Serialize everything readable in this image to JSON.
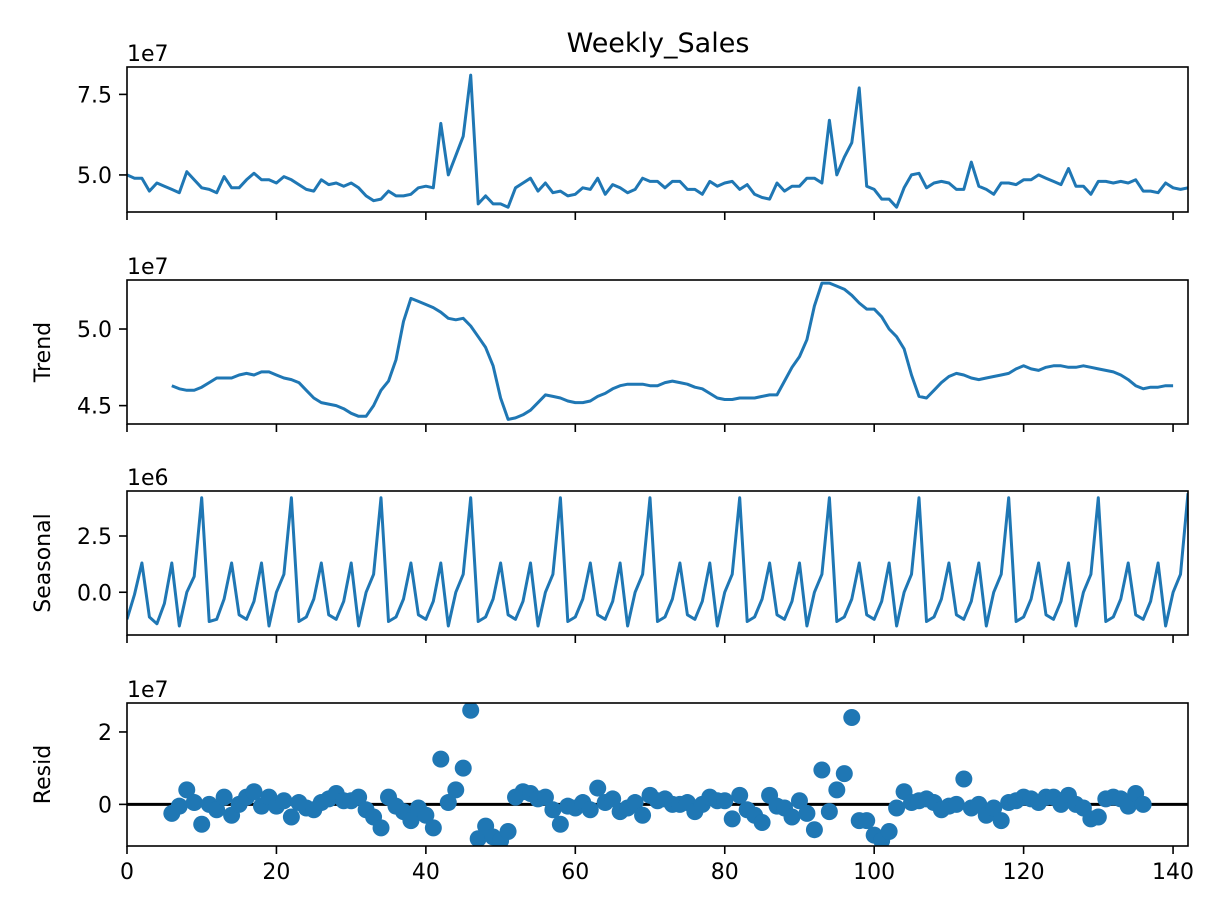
{
  "chart_data": {
    "type": "line",
    "title": "Weekly_Sales",
    "x_ticks": [
      0,
      20,
      40,
      60,
      80,
      100,
      120,
      140
    ],
    "xlim": [
      0,
      142
    ],
    "panels": [
      {
        "key": "observed",
        "ylabel": "",
        "exponent": "1e7",
        "ylim": [
          3.85,
          8.35
        ],
        "y_ticks": [
          {
            "v": 5.0,
            "label": "5.0"
          },
          {
            "v": 7.5,
            "label": "7.5"
          }
        ],
        "style": "line",
        "values": [
          5.0,
          4.9,
          4.9,
          4.5,
          4.75,
          4.65,
          4.55,
          4.45,
          5.1,
          4.85,
          4.6,
          4.55,
          4.45,
          4.95,
          4.6,
          4.6,
          4.85,
          5.05,
          4.85,
          4.85,
          4.75,
          4.95,
          4.85,
          4.7,
          4.55,
          4.5,
          4.85,
          4.7,
          4.75,
          4.65,
          4.75,
          4.6,
          4.35,
          4.2,
          4.25,
          4.5,
          4.35,
          4.35,
          4.4,
          4.6,
          4.65,
          4.6,
          6.6,
          5.0,
          5.6,
          6.2,
          8.1,
          4.1,
          4.35,
          4.1,
          4.1,
          4.0,
          4.6,
          4.75,
          4.9,
          4.5,
          4.75,
          4.45,
          4.5,
          4.35,
          4.4,
          4.6,
          4.55,
          4.9,
          4.4,
          4.7,
          4.6,
          4.45,
          4.55,
          4.9,
          4.8,
          4.8,
          4.6,
          4.8,
          4.8,
          4.55,
          4.55,
          4.4,
          4.8,
          4.65,
          4.75,
          4.8,
          4.55,
          4.7,
          4.4,
          4.3,
          4.25,
          4.75,
          4.5,
          4.65,
          4.65,
          4.9,
          4.9,
          4.75,
          6.7,
          5.0,
          5.55,
          6.0,
          7.7,
          4.65,
          4.55,
          4.25,
          4.25,
          4.0,
          4.6,
          5.0,
          5.05,
          4.6,
          4.75,
          4.8,
          4.75,
          4.55,
          4.55,
          5.4,
          4.65,
          4.55,
          4.4,
          4.75,
          4.75,
          4.7,
          4.85,
          4.85,
          5.0,
          4.9,
          4.8,
          4.7,
          5.2,
          4.65,
          4.65,
          4.4,
          4.8,
          4.8,
          4.75,
          4.8,
          4.75,
          4.85,
          4.5,
          4.5,
          4.45,
          4.75,
          4.6,
          4.55,
          4.6
        ]
      },
      {
        "key": "trend",
        "ylabel": "Trend",
        "exponent": "1e7",
        "ylim": [
          4.38,
          5.32
        ],
        "y_ticks": [
          {
            "v": 4.5,
            "label": "4.5"
          },
          {
            "v": 5.0,
            "label": "5.0"
          }
        ],
        "style": "line",
        "x_start": 6,
        "values": [
          4.63,
          4.61,
          4.6,
          4.6,
          4.62,
          4.65,
          4.68,
          4.68,
          4.68,
          4.7,
          4.71,
          4.7,
          4.72,
          4.72,
          4.7,
          4.68,
          4.67,
          4.65,
          4.6,
          4.55,
          4.52,
          4.51,
          4.5,
          4.48,
          4.45,
          4.43,
          4.43,
          4.5,
          4.6,
          4.66,
          4.8,
          5.05,
          5.2,
          5.18,
          5.16,
          5.14,
          5.11,
          5.07,
          5.06,
          5.07,
          5.02,
          4.95,
          4.88,
          4.76,
          4.55,
          4.41,
          4.42,
          4.44,
          4.47,
          4.52,
          4.57,
          4.56,
          4.55,
          4.53,
          4.52,
          4.52,
          4.53,
          4.56,
          4.58,
          4.61,
          4.63,
          4.64,
          4.64,
          4.64,
          4.63,
          4.63,
          4.65,
          4.66,
          4.65,
          4.64,
          4.62,
          4.61,
          4.58,
          4.55,
          4.54,
          4.54,
          4.55,
          4.55,
          4.55,
          4.56,
          4.57,
          4.57,
          4.66,
          4.75,
          4.82,
          4.93,
          5.15,
          5.3,
          5.3,
          5.28,
          5.26,
          5.22,
          5.17,
          5.13,
          5.13,
          5.08,
          5.0,
          4.95,
          4.87,
          4.7,
          4.56,
          4.55,
          4.6,
          4.65,
          4.69,
          4.71,
          4.7,
          4.68,
          4.67,
          4.68,
          4.69,
          4.7,
          4.71,
          4.74,
          4.76,
          4.74,
          4.73,
          4.75,
          4.76,
          4.76,
          4.75,
          4.75,
          4.76,
          4.75,
          4.74,
          4.73,
          4.72,
          4.7,
          4.67,
          4.63,
          4.61,
          4.62,
          4.62,
          4.63,
          4.63
        ]
      },
      {
        "key": "seasonal",
        "ylabel": "Seasonal",
        "exponent": "1e6",
        "ylim": [
          -1.9,
          4.5
        ],
        "y_ticks": [
          {
            "v": 0.0,
            "label": "0.0"
          },
          {
            "v": 2.5,
            "label": "2.5"
          }
        ],
        "style": "line",
        "values": [
          -1.2,
          -0.1,
          1.3,
          -1.1,
          -1.4,
          -0.5,
          1.3,
          -1.5,
          0.0,
          0.7,
          4.2,
          -1.3,
          -1.2,
          -0.3,
          1.3,
          -1.0,
          -1.2,
          -0.4,
          1.3,
          -1.5,
          0.0,
          0.8,
          4.2,
          -1.3,
          -1.1,
          -0.3,
          1.3,
          -1.0,
          -1.2,
          -0.4,
          1.3,
          -1.5,
          0.0,
          0.8,
          4.2,
          -1.3,
          -1.1,
          -0.3,
          1.3,
          -1.0,
          -1.2,
          -0.4,
          1.3,
          -1.5,
          0.0,
          0.8,
          4.2,
          -1.3,
          -1.1,
          -0.3,
          1.3,
          -1.0,
          -1.2,
          -0.4,
          1.3,
          -1.5,
          0.0,
          0.8,
          4.2,
          -1.3,
          -1.1,
          -0.3,
          1.3,
          -1.0,
          -1.2,
          -0.4,
          1.3,
          -1.5,
          0.0,
          0.8,
          4.2,
          -1.3,
          -1.1,
          -0.3,
          1.3,
          -1.0,
          -1.2,
          -0.4,
          1.3,
          -1.5,
          0.0,
          0.8,
          4.2,
          -1.3,
          -1.1,
          -0.3,
          1.3,
          -1.0,
          -1.2,
          -0.4,
          1.3,
          -1.5,
          0.0,
          0.8,
          4.2,
          -1.3,
          -1.1,
          -0.3,
          1.3,
          -1.0,
          -1.2,
          -0.4,
          1.3,
          -1.5,
          0.0,
          0.8,
          4.2,
          -1.3,
          -1.1,
          -0.3,
          1.3,
          -1.0,
          -1.2,
          -0.4,
          1.3,
          -1.5,
          0.0,
          0.8,
          4.2,
          -1.3,
          -1.1,
          -0.3,
          1.3,
          -1.0,
          -1.2,
          -0.4,
          1.3,
          -1.5,
          0.0,
          0.8,
          4.2,
          -1.3,
          -1.1,
          -0.3,
          1.3,
          -1.0,
          -1.2,
          -0.4,
          1.3,
          -1.5,
          0.0,
          0.8,
          4.4
        ]
      },
      {
        "key": "resid",
        "ylabel": "Resid",
        "exponent": "1e7",
        "ylim": [
          -1.15,
          2.8
        ],
        "y_ticks": [
          {
            "v": 0,
            "label": "0"
          },
          {
            "v": 2,
            "label": "2"
          }
        ],
        "style": "scatter",
        "zero_line": true,
        "x_start": 6,
        "values": [
          -0.25,
          -0.05,
          0.4,
          0.05,
          -0.55,
          0.0,
          -0.15,
          0.2,
          -0.3,
          0.0,
          0.2,
          0.35,
          -0.05,
          0.2,
          -0.05,
          0.1,
          -0.35,
          0.05,
          -0.1,
          -0.15,
          0.05,
          0.15,
          0.3,
          0.1,
          0.1,
          0.2,
          -0.15,
          -0.35,
          -0.65,
          0.2,
          -0.05,
          -0.2,
          -0.45,
          -0.1,
          -0.3,
          -0.65,
          1.25,
          0.05,
          0.4,
          1.0,
          2.6,
          -0.95,
          -0.6,
          -0.9,
          -1.0,
          -0.75,
          0.2,
          0.35,
          0.3,
          0.15,
          0.2,
          -0.15,
          -0.55,
          -0.05,
          -0.1,
          0.05,
          -0.15,
          0.45,
          0.05,
          0.15,
          -0.2,
          -0.1,
          0.05,
          -0.3,
          0.25,
          0.1,
          0.15,
          0.0,
          0.0,
          0.05,
          -0.2,
          0.0,
          0.2,
          0.1,
          0.1,
          -0.4,
          0.25,
          -0.15,
          -0.3,
          -0.5,
          0.25,
          -0.05,
          -0.1,
          -0.35,
          0.1,
          -0.25,
          -0.7,
          0.95,
          -0.2,
          0.4,
          0.85,
          2.4,
          -0.45,
          -0.45,
          -0.85,
          -1.0,
          -0.75,
          -0.1,
          0.35,
          0.05,
          0.1,
          0.15,
          0.05,
          -0.15,
          -0.05,
          0.0,
          0.7,
          -0.1,
          0.0,
          -0.3,
          -0.1,
          -0.45,
          0.05,
          0.1,
          0.2,
          0.15,
          0.05,
          0.2,
          0.2,
          0.0,
          0.25,
          0.0,
          -0.1,
          -0.4,
          -0.35,
          0.15,
          0.2,
          0.15,
          -0.05,
          0.3,
          0.0
        ]
      }
    ]
  }
}
